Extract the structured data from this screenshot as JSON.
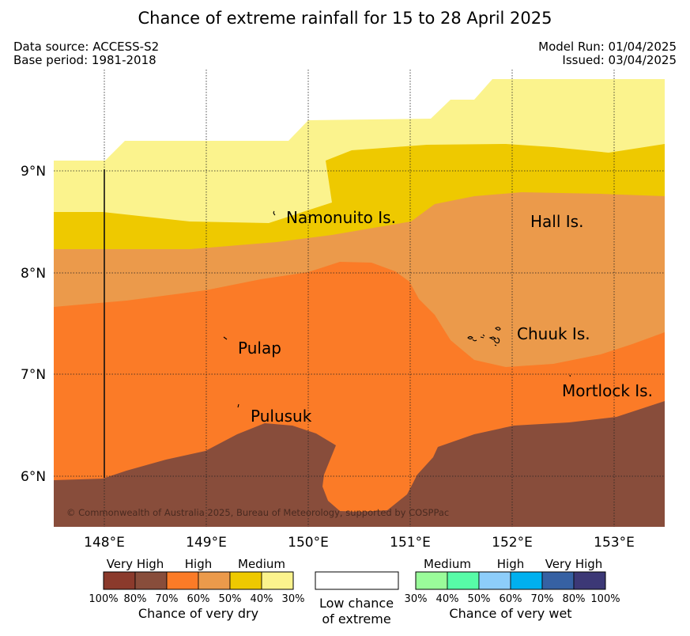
{
  "title": "Chance of extreme rainfall for 15 to 28 April 2025",
  "data_source": "Data source: ACCESS-S2",
  "base_period": "Base period: 1981-2018",
  "model_run": "Model Run: 01/04/2025",
  "issued": "Issued: 03/04/2025",
  "copyright": "© Commonwealth of Australia 2025, Bureau of Meteorology, supported by COSPPac",
  "map": {
    "lat_ticks": [
      "9°N",
      "8°N",
      "7°N",
      "6°N"
    ],
    "lon_ticks": [
      "148°E",
      "149°E",
      "150°E",
      "151°E",
      "152°E",
      "153°E"
    ],
    "places": [
      "Namonuito Is.",
      "Hall Is.",
      "Chuuk Is.",
      "Pulap",
      "Mortlock Is.",
      "Pulusuk"
    ]
  },
  "legend": {
    "dry": {
      "categories": [
        "Very High",
        "High",
        "Medium"
      ],
      "ticks": [
        "100%",
        "80%",
        "70%",
        "60%",
        "50%",
        "40%",
        "30%"
      ],
      "title": "Chance of very dry",
      "colors": [
        "#8b3a2c",
        "#884d3b",
        "#fb7b27",
        "#eb9a4b",
        "#eec900",
        "#fbf38d"
      ]
    },
    "low": {
      "line1": "Low chance",
      "line2": "of extreme"
    },
    "wet": {
      "categories": [
        "Medium",
        "High",
        "Very High"
      ],
      "ticks": [
        "30%",
        "40%",
        "50%",
        "60%",
        "70%",
        "80%",
        "100%"
      ],
      "title": "Chance of very wet",
      "colors": [
        "#9afc9a",
        "#57fba7",
        "#8dcdfa",
        "#00b0ef",
        "#3661a3",
        "#3c3876"
      ]
    }
  }
}
